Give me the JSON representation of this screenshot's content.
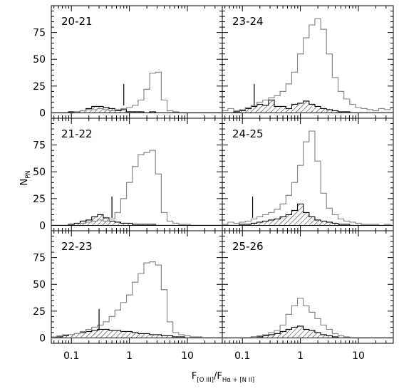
{
  "chart_data": {
    "type": "histogram-grid",
    "ylabel_main": "N",
    "ylabel_sub": "PN",
    "xlabel": {
      "F1": "F",
      "sub1": "[O III]",
      "slash": "/",
      "F2": "F",
      "sub2": "Hα + [N II]"
    },
    "xscale": "log",
    "xlim": [
      0.045,
      40
    ],
    "ylim": [
      -5,
      100
    ],
    "yticks": [
      "0",
      "25",
      "50",
      "75"
    ],
    "xticks": [
      "0.1",
      "1",
      "10"
    ],
    "bin_edges": [
      0.0447,
      0.0562,
      0.0708,
      0.0891,
      0.1122,
      0.1413,
      0.1778,
      0.2239,
      0.2818,
      0.3548,
      0.4467,
      0.5623,
      0.7079,
      0.8913,
      1.122,
      1.413,
      1.778,
      2.239,
      2.818,
      3.548,
      4.467,
      5.623,
      7.079,
      8.913,
      11.22,
      14.13,
      17.78,
      22.39,
      28.18,
      35.48,
      44.67
    ],
    "panels": [
      {
        "label": "20-21",
        "marker_x": 0.8,
        "total": [
          0,
          0,
          0,
          0,
          1,
          2,
          3,
          3,
          4,
          3,
          2,
          3,
          4,
          5,
          7,
          12,
          22,
          37,
          38,
          12,
          2,
          1,
          0,
          0,
          0,
          0,
          0,
          0,
          0,
          0
        ],
        "hatched": [
          0,
          0,
          0,
          1,
          1,
          2,
          4,
          6,
          6,
          5,
          4,
          2,
          3,
          1,
          1,
          1,
          0,
          1,
          0,
          0,
          0,
          0,
          0,
          0,
          0,
          0,
          0,
          0,
          0,
          0
        ]
      },
      {
        "label": "23-24",
        "marker_x": 0.16,
        "total": [
          2,
          4,
          2,
          3,
          5,
          7,
          10,
          12,
          14,
          16,
          20,
          27,
          38,
          55,
          70,
          82,
          88,
          78,
          55,
          33,
          20,
          13,
          8,
          5,
          4,
          3,
          2,
          4,
          3,
          5
        ],
        "hatched": [
          0,
          0,
          1,
          2,
          4,
          6,
          8,
          7,
          12,
          6,
          6,
          4,
          8,
          9,
          11,
          8,
          6,
          4,
          3,
          2,
          1,
          1,
          0,
          0,
          0,
          0,
          0,
          0,
          0,
          0
        ]
      },
      {
        "label": "21-22",
        "marker_x": 0.5,
        "total": [
          0,
          0,
          0,
          0,
          0,
          2,
          3,
          4,
          5,
          4,
          6,
          12,
          25,
          40,
          55,
          66,
          68,
          70,
          48,
          12,
          4,
          2,
          1,
          1,
          0,
          0,
          0,
          0,
          0,
          0
        ],
        "hatched": [
          0,
          0,
          0,
          1,
          2,
          4,
          5,
          8,
          10,
          7,
          4,
          3,
          2,
          2,
          1,
          1,
          1,
          1,
          0,
          0,
          0,
          0,
          0,
          0,
          0,
          0,
          0,
          0,
          0,
          0
        ]
      },
      {
        "label": "24-25",
        "marker_x": 0.15,
        "total": [
          1,
          3,
          2,
          3,
          4,
          6,
          8,
          10,
          12,
          15,
          20,
          28,
          40,
          56,
          78,
          88,
          60,
          30,
          16,
          10,
          6,
          4,
          3,
          2,
          1,
          1,
          1,
          0,
          1,
          0
        ],
        "hatched": [
          0,
          0,
          0,
          1,
          1,
          2,
          3,
          4,
          5,
          6,
          8,
          10,
          14,
          20,
          12,
          8,
          5,
          4,
          3,
          2,
          1,
          1,
          0,
          0,
          0,
          0,
          0,
          0,
          0,
          0
        ]
      },
      {
        "label": "22-23",
        "marker_x": 0.3,
        "total": [
          1,
          2,
          3,
          3,
          4,
          6,
          8,
          10,
          12,
          15,
          20,
          26,
          33,
          40,
          52,
          60,
          70,
          71,
          68,
          45,
          15,
          5,
          3,
          2,
          1,
          1,
          0,
          0,
          0,
          0
        ],
        "hatched": [
          0,
          1,
          2,
          3,
          4,
          5,
          6,
          7,
          8,
          8,
          7,
          7,
          6,
          6,
          5,
          4,
          4,
          3,
          3,
          2,
          2,
          1,
          1,
          0,
          0,
          0,
          0,
          0,
          0,
          0
        ]
      },
      {
        "label": "25-26",
        "marker_x": null,
        "total": [
          0,
          0,
          0,
          0,
          0,
          1,
          2,
          3,
          5,
          7,
          12,
          22,
          30,
          37,
          30,
          24,
          18,
          12,
          8,
          4,
          2,
          1,
          0,
          0,
          0,
          0,
          0,
          0,
          0,
          0
        ],
        "hatched": [
          0,
          0,
          0,
          0,
          0,
          1,
          1,
          2,
          3,
          4,
          6,
          8,
          10,
          11,
          8,
          7,
          5,
          3,
          2,
          1,
          0,
          0,
          0,
          0,
          0,
          0,
          0,
          0,
          0,
          0
        ]
      }
    ]
  }
}
